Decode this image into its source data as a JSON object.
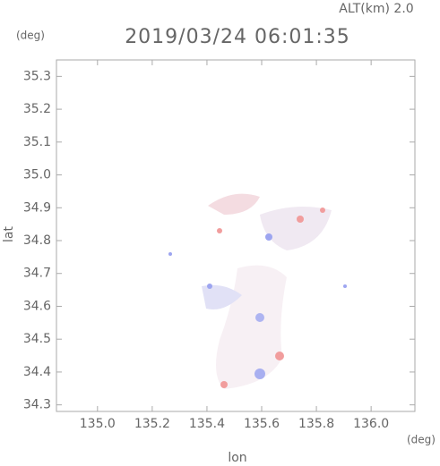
{
  "chart_data": {
    "type": "map",
    "title": "2019/03/24 06:01:35",
    "subtitle": "ALT(km) 2.0",
    "x_label": "lon",
    "y_label": "lat",
    "x_unit": "(deg)",
    "y_unit": "(deg)",
    "xlim": [
      134.85,
      136.16
    ],
    "ylim": [
      34.28,
      35.35
    ],
    "xticks": [
      {
        "value": 135,
        "label": "135.0"
      },
      135.2,
      135.4,
      135.6,
      135.8,
      {
        "value": 136,
        "label": "136.0"
      }
    ],
    "yticks": [
      34.3,
      34.4,
      34.5,
      34.6,
      34.7,
      34.8,
      34.9,
      {
        "value": 35,
        "label": "35.0"
      },
      35.1,
      35.2,
      35.3
    ]
  }
}
